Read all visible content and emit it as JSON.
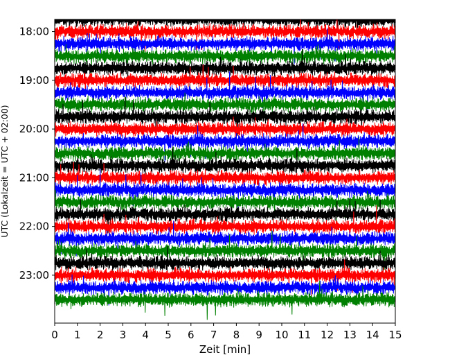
{
  "chart_data": {
    "type": "line",
    "title": "",
    "xlabel": "Zeit  [min]",
    "ylabel": "UTC (Lokalzeit = UTC + 02:00)",
    "xlim": [
      0,
      15
    ],
    "x_ticks": [
      "0",
      "1",
      "2",
      "3",
      "4",
      "5",
      "6",
      "7",
      "8",
      "9",
      "10",
      "11",
      "12",
      "13",
      "14",
      "15"
    ],
    "y_ticks": [
      "18:00",
      "19:00",
      "20:00",
      "21:00",
      "22:00",
      "23:00"
    ],
    "ylim": [
      "17:45",
      "23:59"
    ],
    "trace_interval_min": 15,
    "traces_start": "17:45",
    "traces_count": 24,
    "color_cycle": [
      "#000000",
      "#ff0000",
      "#0000ff",
      "#008000"
    ],
    "grid": false,
    "legend": "none"
  }
}
